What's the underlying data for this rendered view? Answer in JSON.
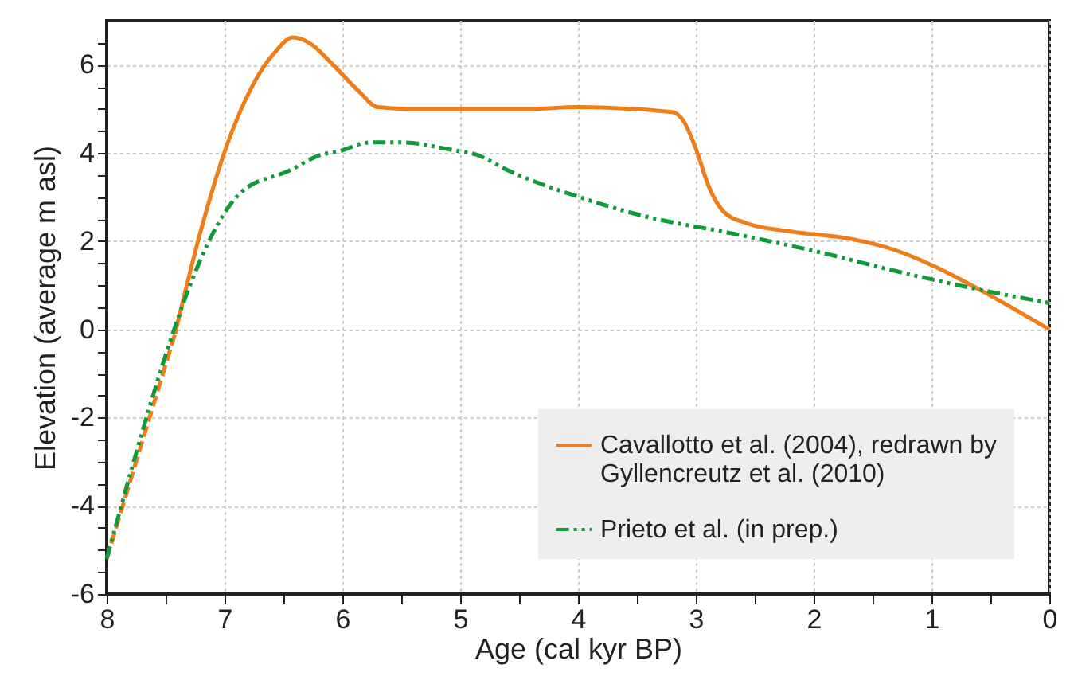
{
  "chart_data": {
    "type": "line",
    "xlabel": "Age (cal kyr BP)",
    "ylabel": "Elevation (average m asl)",
    "xlim": [
      8,
      0
    ],
    "ylim": [
      -6,
      7
    ],
    "xticks": [
      8,
      {
        "value": 7.5,
        "label": null
      },
      7,
      {
        "value": 6.5,
        "label": null
      },
      6,
      {
        "value": 5.5,
        "label": null
      },
      5,
      {
        "value": 4.5,
        "label": null
      },
      4,
      {
        "value": 3.5,
        "label": null
      },
      3,
      {
        "value": 2.5,
        "label": null
      },
      2,
      {
        "value": 1.5,
        "label": null
      },
      1,
      {
        "value": 0.5,
        "label": null
      },
      0
    ],
    "yticks": [
      -6,
      {
        "value": -5.5,
        "label": null
      },
      {
        "value": -5,
        "label": null
      },
      {
        "value": -4.5,
        "label": null
      },
      -4,
      {
        "value": -3.5,
        "label": null
      },
      {
        "value": -3,
        "label": null
      },
      {
        "value": -2.5,
        "label": null
      },
      -2,
      {
        "value": -1.5,
        "label": null
      },
      {
        "value": -1,
        "label": null
      },
      {
        "value": -0.5,
        "label": null
      },
      0,
      {
        "value": 0.5,
        "label": null
      },
      {
        "value": 1,
        "label": null
      },
      {
        "value": 1.5,
        "label": null
      },
      2,
      {
        "value": 2.5,
        "label": null
      },
      {
        "value": 3,
        "label": null
      },
      {
        "value": 3.5,
        "label": null
      },
      4,
      {
        "value": 4.5,
        "label": null
      },
      {
        "value": 5,
        "label": null
      },
      {
        "value": 5.5,
        "label": null
      },
      6,
      {
        "value": 6.5,
        "label": null
      }
    ],
    "grid": true,
    "legend": "bottom right",
    "series": [
      {
        "color": "#ef7d1a",
        "line_style": "dashed",
        "x": [
          8,
          7.42
        ],
        "values": [
          -5.2,
          -0.1
        ]
      },
      {
        "name": "Cavallotto et al. (2004), redrawn by Gyllencreutz et al. (2010)",
        "color": "#ef7d1a",
        "line_style": "solid",
        "x": [
          7.42,
          7.22,
          6.99,
          6.76,
          6.58,
          6.42,
          6.27,
          6.08,
          5.86,
          5.7,
          5.41,
          4.42,
          4.01,
          3.2,
          3.11,
          3.0,
          2.89,
          2.76,
          2.57,
          2.22,
          1.68,
          1.31,
          0.95,
          0.59,
          0
        ],
        "values": [
          -0.1,
          2.05,
          4.1,
          5.54,
          6.26,
          6.62,
          6.48,
          6.0,
          5.4,
          5.04,
          5.0,
          5.0,
          5.04,
          4.93,
          4.75,
          4.1,
          3.24,
          2.66,
          2.41,
          2.23,
          2.05,
          1.8,
          1.4,
          0.9,
          0
        ]
      },
      {
        "name": "Prieto et al. (in prep.)",
        "color": "#129a3a",
        "line_style": "dashed",
        "x": [
          8,
          6.85,
          6.45,
          6.18,
          6.04,
          5.77,
          5.5,
          5.05,
          4.86,
          4.59,
          4.01,
          3.47,
          2.66,
          2.03,
          1.14,
          0.59,
          0
        ],
        "values": [
          -5.2,
          3.13,
          3.6,
          3.96,
          4.03,
          4.24,
          4.24,
          4.06,
          3.96,
          3.6,
          3.02,
          2.59,
          2.16,
          1.8,
          1.22,
          0.9,
          0.6
        ]
      }
    ]
  }
}
